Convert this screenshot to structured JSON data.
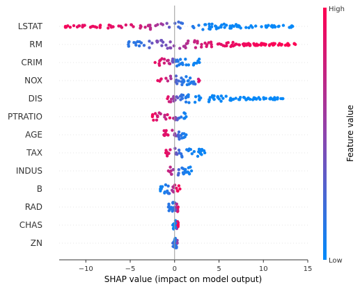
{
  "chart_data": {
    "type": "scatter",
    "subtype": "shap-beeswarm",
    "title": "",
    "xlabel": "SHAP value (impact on model output)",
    "xlim": [
      -13,
      15
    ],
    "xticks": [
      -10,
      -5,
      0,
      5,
      10,
      15
    ],
    "colorbar": {
      "title": "Feature value",
      "high_label": "High",
      "low_label": "Low",
      "low_color": "#008bfb",
      "mid_color": "#8e44ad",
      "high_color": "#ff0052"
    },
    "features": [
      {
        "name": "LSTAT",
        "min": -12.3,
        "max": 13.3,
        "points": [
          [
            -12.0,
            0.95
          ],
          [
            -11.2,
            0.9
          ],
          [
            -10.3,
            0.9
          ],
          [
            -9.0,
            0.92
          ],
          [
            -8.2,
            0.95
          ],
          [
            -7.3,
            0.9
          ],
          [
            -6.4,
            0.88
          ],
          [
            -5.6,
            0.85
          ],
          [
            -4.7,
            0.85
          ],
          [
            -4.0,
            0.8
          ],
          [
            -3.3,
            0.75
          ],
          [
            -2.8,
            0.7
          ],
          [
            -2.3,
            0.65
          ],
          [
            -1.9,
            0.62
          ],
          [
            -1.6,
            0.6
          ],
          [
            -1.3,
            0.55
          ],
          [
            -1.1,
            0.5
          ],
          [
            -0.9,
            0.45
          ],
          [
            -0.8,
            0.4
          ],
          [
            -0.6,
            0.35
          ],
          [
            -0.4,
            0.3
          ],
          [
            0.3,
            0.25
          ],
          [
            0.9,
            0.18
          ],
          [
            2.0,
            0.12
          ],
          [
            2.8,
            0.1
          ],
          [
            3.5,
            0.05
          ],
          [
            4.0,
            0.05
          ],
          [
            4.6,
            0.05
          ],
          [
            5.2,
            0.04
          ],
          [
            6.0,
            0.04
          ],
          [
            7.0,
            0.03
          ],
          [
            8.5,
            0.03
          ],
          [
            9.5,
            0.03
          ],
          [
            10.5,
            0.02
          ],
          [
            11.5,
            0.02
          ],
          [
            12.3,
            0.02
          ],
          [
            13.2,
            0.02
          ]
        ]
      },
      {
        "name": "RM",
        "min": -5.2,
        "max": 13.6,
        "points": [
          [
            -5.2,
            0.15
          ],
          [
            -4.6,
            0.15
          ],
          [
            -4.0,
            0.15
          ],
          [
            -3.5,
            0.2
          ],
          [
            -3.0,
            0.25
          ],
          [
            -2.6,
            0.35
          ],
          [
            -2.2,
            0.4
          ],
          [
            -1.9,
            0.45
          ],
          [
            -1.6,
            0.4
          ],
          [
            -1.3,
            0.38
          ],
          [
            -1.0,
            0.4
          ],
          [
            -0.6,
            0.45
          ],
          [
            -0.2,
            0.5
          ],
          [
            0.5,
            0.55
          ],
          [
            1.2,
            0.65
          ],
          [
            2.0,
            0.72
          ],
          [
            3.0,
            0.8
          ],
          [
            4.0,
            0.85
          ],
          [
            5.0,
            0.88
          ],
          [
            6.0,
            0.9
          ],
          [
            7.0,
            0.92
          ],
          [
            9.8,
            0.97
          ],
          [
            10.4,
            0.97
          ],
          [
            11.0,
            0.98
          ],
          [
            11.6,
            0.98
          ],
          [
            12.2,
            0.99
          ],
          [
            13.0,
            0.99
          ],
          [
            13.6,
            0.99
          ]
        ]
      },
      {
        "name": "CRIM",
        "min": -2.2,
        "max": 2.8,
        "points": [
          [
            -2.1,
            0.9
          ],
          [
            -1.6,
            0.85
          ],
          [
            -1.2,
            0.8
          ],
          [
            -0.8,
            0.75
          ],
          [
            -0.5,
            0.7
          ],
          [
            -0.2,
            0.4
          ],
          [
            0.0,
            0.2
          ],
          [
            0.2,
            0.15
          ],
          [
            0.4,
            0.1
          ],
          [
            0.7,
            0.1
          ],
          [
            1.1,
            0.08
          ],
          [
            1.5,
            0.06
          ],
          [
            1.9,
            0.05
          ],
          [
            2.3,
            0.05
          ],
          [
            2.8,
            0.05
          ]
        ]
      },
      {
        "name": "NOX",
        "min": -1.9,
        "max": 2.8,
        "points": [
          [
            -1.8,
            0.9
          ],
          [
            -1.4,
            0.85
          ],
          [
            -1.0,
            0.8
          ],
          [
            -0.7,
            0.7
          ],
          [
            -0.4,
            0.6
          ],
          [
            -0.1,
            0.45
          ],
          [
            0.1,
            0.3
          ],
          [
            0.3,
            0.25
          ],
          [
            0.6,
            0.2
          ],
          [
            0.9,
            0.15
          ],
          [
            1.3,
            0.1
          ],
          [
            1.8,
            0.1
          ],
          [
            2.3,
            0.15
          ],
          [
            2.8,
            0.9
          ]
        ]
      },
      {
        "name": "DIS",
        "min": -0.8,
        "max": 12.2,
        "points": [
          [
            -0.8,
            0.9
          ],
          [
            -0.5,
            0.7
          ],
          [
            -0.2,
            0.6
          ],
          [
            0.1,
            0.4
          ],
          [
            0.4,
            0.3
          ],
          [
            0.7,
            0.2
          ],
          [
            1.0,
            0.15
          ],
          [
            1.5,
            0.1
          ],
          [
            2.0,
            0.05
          ],
          [
            2.5,
            0.05
          ],
          [
            3.6,
            0.04
          ],
          [
            7.9,
            0.02
          ],
          [
            8.6,
            0.02
          ],
          [
            11.6,
            0.02
          ],
          [
            12.2,
            0.02
          ]
        ]
      },
      {
        "name": "PTRATIO",
        "min": -2.5,
        "max": 1.3,
        "points": [
          [
            -2.5,
            0.95
          ],
          [
            -1.3,
            0.65
          ],
          [
            -0.9,
            0.8
          ],
          [
            -0.6,
            0.9
          ],
          [
            -0.3,
            0.85
          ],
          [
            0.0,
            0.6
          ],
          [
            0.2,
            0.35
          ],
          [
            0.4,
            0.25
          ],
          [
            0.6,
            0.15
          ],
          [
            0.9,
            0.1
          ],
          [
            1.3,
            0.05
          ]
        ]
      },
      {
        "name": "AGE",
        "min": -1.2,
        "max": 1.3,
        "points": [
          [
            -1.2,
            0.85
          ],
          [
            -0.9,
            0.9
          ],
          [
            -0.6,
            0.85
          ],
          [
            -0.3,
            0.75
          ],
          [
            0.0,
            0.55
          ],
          [
            0.2,
            0.35
          ],
          [
            0.4,
            0.25
          ],
          [
            0.7,
            0.15
          ],
          [
            1.0,
            0.1
          ],
          [
            1.3,
            0.08
          ]
        ]
      },
      {
        "name": "TAX",
        "min": -1.0,
        "max": 3.4,
        "points": [
          [
            -1.0,
            0.9
          ],
          [
            -0.6,
            0.85
          ],
          [
            -0.3,
            0.7
          ],
          [
            0.0,
            0.45
          ],
          [
            0.3,
            0.3
          ],
          [
            0.6,
            0.2
          ],
          [
            1.0,
            0.12
          ],
          [
            1.5,
            0.08
          ],
          [
            2.0,
            0.06
          ],
          [
            2.6,
            0.05
          ],
          [
            3.4,
            0.04
          ]
        ]
      },
      {
        "name": "INDUS",
        "min": -0.7,
        "max": 1.9,
        "points": [
          [
            -0.7,
            0.75
          ],
          [
            -0.4,
            0.7
          ],
          [
            -0.2,
            0.6
          ],
          [
            0.0,
            0.45
          ],
          [
            0.3,
            0.3
          ],
          [
            0.6,
            0.2
          ],
          [
            0.9,
            0.12
          ],
          [
            1.3,
            0.08
          ],
          [
            1.9,
            0.05
          ]
        ]
      },
      {
        "name": "B",
        "min": -1.6,
        "max": 0.6,
        "points": [
          [
            -1.6,
            0.05
          ],
          [
            -1.3,
            0.08
          ],
          [
            -1.0,
            0.1
          ],
          [
            -0.7,
            0.15
          ],
          [
            -0.4,
            0.5
          ],
          [
            -0.1,
            0.7
          ],
          [
            0.1,
            0.85
          ],
          [
            0.3,
            0.95
          ],
          [
            0.6,
            0.95
          ]
        ]
      },
      {
        "name": "RAD",
        "min": -0.7,
        "max": 0.4,
        "points": [
          [
            -0.7,
            0.15
          ],
          [
            -0.4,
            0.1
          ],
          [
            -0.2,
            0.15
          ],
          [
            0.0,
            0.2
          ],
          [
            0.2,
            0.6
          ],
          [
            0.4,
            0.9
          ]
        ]
      },
      {
        "name": "CHAS",
        "min": -0.2,
        "max": 0.4,
        "points": [
          [
            -0.2,
            0.05
          ],
          [
            -0.1,
            0.05
          ],
          [
            0.0,
            0.05
          ],
          [
            0.1,
            0.05
          ],
          [
            0.4,
            1.0
          ]
        ]
      },
      {
        "name": "ZN",
        "min": -0.2,
        "max": 0.3,
        "points": [
          [
            -0.2,
            0.2
          ],
          [
            -0.1,
            0.1
          ],
          [
            0.0,
            0.1
          ],
          [
            0.1,
            0.1
          ],
          [
            0.2,
            0.15
          ],
          [
            0.3,
            0.5
          ]
        ]
      }
    ]
  }
}
